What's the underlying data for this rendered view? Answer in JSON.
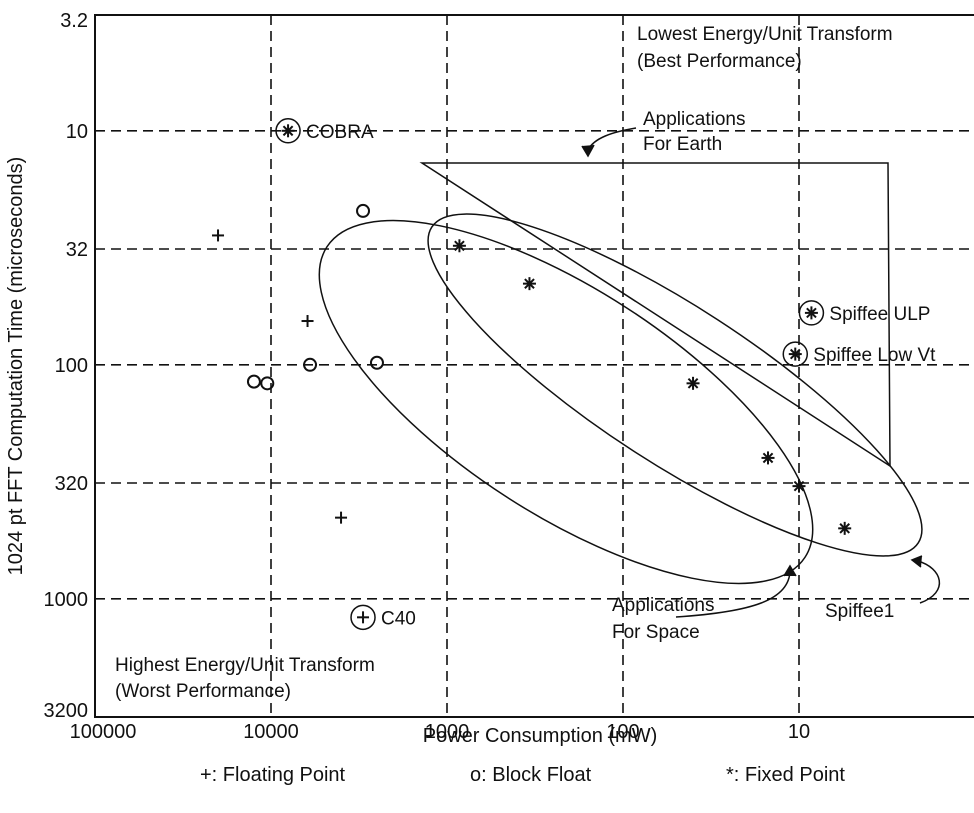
{
  "chart_data": {
    "type": "scatter",
    "title": "",
    "xlabel": "Power Consumption (mW)",
    "ylabel": "1024 pt FFT Computation Time (microseconds)",
    "x_scale": "log",
    "x_reversed": true,
    "y_scale": "log",
    "y_reversed": true,
    "xlim": [
      100000,
      1
    ],
    "ylim": [
      3.2,
      3200
    ],
    "x_ticks": [
      {
        "value": 100000,
        "label": "100000"
      },
      {
        "value": 10000,
        "label": "10000"
      },
      {
        "value": 1000,
        "label": "1000"
      },
      {
        "value": 100,
        "label": "100"
      },
      {
        "value": 10,
        "label": "10"
      }
    ],
    "y_ticks": [
      {
        "value": 3.2,
        "label": "3.2"
      },
      {
        "value": 10,
        "label": "10"
      },
      {
        "value": 32,
        "label": "32"
      },
      {
        "value": 100,
        "label": "100"
      },
      {
        "value": 320,
        "label": "320"
      },
      {
        "value": 1000,
        "label": "1000"
      },
      {
        "value": 3200,
        "label": "3200"
      }
    ],
    "grid": true,
    "legend": "bottom",
    "series": [
      {
        "name": "+: Floating Point",
        "marker": "+",
        "points": [
          [
            20000,
            28
          ],
          [
            6200,
            65
          ],
          [
            4000,
            450
          ]
        ]
      },
      {
        "name": "o: Block Float",
        "marker": "o",
        "points": [
          [
            3000,
            22
          ],
          [
            2500,
            98
          ],
          [
            6000,
            100
          ],
          [
            10500,
            120
          ],
          [
            12500,
            118
          ]
        ]
      },
      {
        "name": "*: Fixed Point",
        "marker": "*",
        "points": [
          [
            850,
            31
          ],
          [
            340,
            45
          ],
          [
            40,
            120
          ],
          [
            15,
            250
          ],
          [
            10,
            330
          ],
          [
            5.5,
            500
          ]
        ]
      }
    ],
    "highlighted_points": [
      {
        "label": "COBRA",
        "marker": "*",
        "x": 8000,
        "y": 10
      },
      {
        "label": "C40",
        "marker": "+",
        "x": 3000,
        "y": 1200
      },
      {
        "label": "Spiffee ULP",
        "marker": "*",
        "x": 8.5,
        "y": 60
      },
      {
        "label": "Spiffee Low Vt",
        "marker": "*",
        "x": 10.5,
        "y": 90
      }
    ],
    "annotations": [
      {
        "lines": [
          "Lowest Energy/Unit Transform",
          "(Best Performance)"
        ]
      },
      {
        "lines": [
          "Highest Energy/Unit Transform",
          "(Worst Performance)"
        ]
      },
      {
        "lines": [
          "Applications",
          "For Earth"
        ]
      },
      {
        "lines": [
          "Applications",
          "For Space"
        ]
      },
      {
        "lines": [
          "Spiffee1"
        ]
      }
    ]
  }
}
